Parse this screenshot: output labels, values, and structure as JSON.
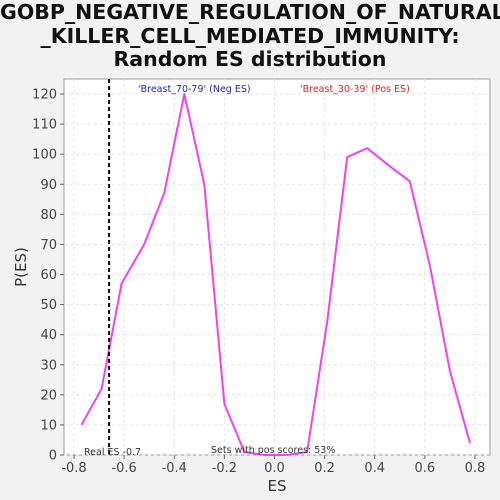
{
  "chart_data": {
    "type": "line",
    "title_lines": [
      "GOBP_NEGATIVE_REGULATION_OF_NATURAL",
      "_KILLER_CELL_MEDIATED_IMMUNITY:",
      "Random ES distribution"
    ],
    "xlabel": "ES",
    "ylabel": "P(ES)",
    "xlim": [
      -0.84,
      0.86
    ],
    "ylim": [
      0,
      125
    ],
    "xticks": [
      -0.8,
      -0.6,
      -0.4,
      -0.2,
      0.0,
      0.2,
      0.4,
      0.6,
      0.8
    ],
    "xtick_labels": [
      "-0.8",
      "-0.6",
      "-0.4",
      "-0.2",
      "0.0",
      "0.2",
      "0.4",
      "0.6",
      "0.8"
    ],
    "yticks": [
      0,
      10,
      20,
      30,
      40,
      50,
      60,
      70,
      80,
      90,
      100,
      110,
      120
    ],
    "grid": true,
    "series": [
      {
        "color": "#ee44ee",
        "x": [
          -0.77,
          -0.69,
          -0.61,
          -0.52,
          -0.44,
          -0.36,
          -0.28,
          -0.2,
          -0.12,
          -0.04,
          0.05,
          0.13,
          0.21,
          0.29,
          0.37,
          0.46,
          0.54,
          0.62,
          0.7,
          0.78
        ],
        "y": [
          10,
          22,
          57,
          70,
          87,
          120,
          90,
          17,
          1,
          0,
          0,
          1,
          44,
          99,
          102,
          96,
          91,
          63,
          28,
          4
        ]
      }
    ],
    "real_es": {
      "value": -0.66,
      "label": "Real ES -0.7"
    },
    "neg_label": {
      "text": "'Breast_70-79' (Neg ES)",
      "color": "#2222bb"
    },
    "pos_label": {
      "text": "'Breast_30-39' (Pos ES)",
      "color": "#dd2222"
    },
    "annotation": "Sets with pos scores: 53%"
  }
}
